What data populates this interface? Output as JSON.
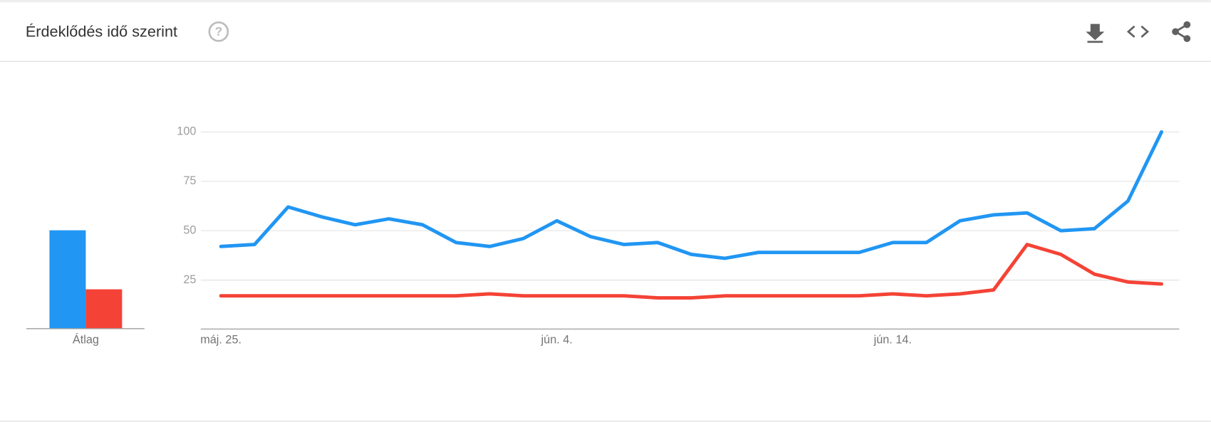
{
  "header": {
    "title": "Érdeklődés idő szerint",
    "help_icon": "?"
  },
  "chart_data": {
    "type": "line",
    "categories": [
      "máj. 25.",
      null,
      null,
      null,
      null,
      null,
      null,
      null,
      null,
      null,
      "jún. 4.",
      null,
      null,
      null,
      null,
      null,
      null,
      null,
      null,
      null,
      "jún. 14.",
      null,
      null,
      null,
      null,
      null,
      null,
      null,
      null
    ],
    "series": [
      {
        "color": "#2196f3",
        "average": 50,
        "values": [
          42,
          43,
          62,
          57,
          53,
          56,
          53,
          44,
          42,
          46,
          55,
          47,
          43,
          44,
          38,
          36,
          39,
          39,
          39,
          39,
          44,
          44,
          55,
          58,
          59,
          50,
          51,
          65,
          100
        ]
      },
      {
        "color": "#f44336",
        "average": 20,
        "values": [
          17,
          17,
          17,
          17,
          17,
          17,
          17,
          17,
          18,
          17,
          17,
          17,
          17,
          16,
          16,
          17,
          17,
          17,
          17,
          17,
          18,
          17,
          18,
          20,
          43,
          38,
          28,
          24,
          23
        ]
      }
    ],
    "average_label": "Átlag",
    "ylim": [
      0,
      100
    ],
    "yticks": [
      25,
      50,
      75,
      100
    ],
    "grid": true
  }
}
